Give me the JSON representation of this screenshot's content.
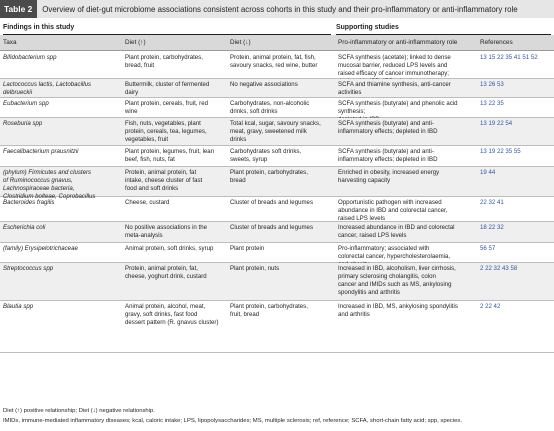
{
  "table": {
    "label": "Table 2",
    "caption": "Overview of diet-gut microbiome associations consistent across cohorts in this study and their pro-inflammatory or anti-inflammatory role"
  },
  "groups": {
    "findings": "Findings in this study",
    "supporting": "Supporting studies"
  },
  "columns": {
    "taxa": "Taxa",
    "diet_up": "Diet (↑)",
    "diet_down": "Diet (↓)",
    "role": "Pro-inflammatory or anti-inflammatory role",
    "refs": "References"
  },
  "rows": [
    {
      "taxa": "Bifidobacterium spp",
      "diet_up": "Plant protein, carbohydrates,\nbread, fruit",
      "diet_down": "Protein, animal protein, fat, fish,\nsavoury snacks, red wine, butter",
      "role": "SCFA synthesis (acetate); linked to dense\nmucosal barrier, reduced LPS levels and\nraised efficacy of cancer immunotherapy;\ndepleted in IBD, IBS, obesity",
      "refs": "13 15 22 35 41 51 52"
    },
    {
      "taxa": "Lactococcus lactis, Lactobacillus\ndelbrueckii",
      "diet_up": "Buttermilk, cluster of fermented\ndairy",
      "diet_down": "No negative associations",
      "role": "SCFA and thiamine synthesis, anti-cancer\nactivities",
      "refs": "13 26 53"
    },
    {
      "taxa": "Eubacterium spp",
      "diet_up": "Plant protein, cereals, fruit, red\nwine",
      "diet_down": "Carbohydrates, non-alcoholic\ndrinks, soft drinks",
      "role": "SCFA synthesis (butyrate) and phenolic acid synthesis;\ndepleted in IBD",
      "refs": "13 22 35"
    },
    {
      "taxa": "Roseburia spp",
      "diet_up": "Fish, nuts, vegetables, plant\nprotein, cereals, tea, legumes,\nvegetables, fruit",
      "diet_down": "Total kcal, sugar, savoury snacks,\nmeat, gravy, sweetened milk\ndrinks",
      "role": "SCFA synthesis (butyrate) and anti-\ninflammatory effects; depleted in IBD",
      "refs": "13 19 22 54"
    },
    {
      "taxa": "Faecalibacterium prausnitzii",
      "diet_up": "Plant protein, legumes, fruit, lean\nbeef, fish, nuts, fat",
      "diet_down": "Carbohydrates soft drinks,\nsweets, syrup",
      "role": "SCFA synthesis (butyrate) and anti-\ninflammatory effects; depleted in IBD",
      "refs": "13 19 22 35 55"
    },
    {
      "taxa": "(phylum) Firmicutes and clusters\nof Ruminococcus gnavus,\nLachnospiraceae bacteria,\nClostridium bolteae, Coprobacillus",
      "diet_up": "Protein, animal protein, fat\nintake, cheese cluster of fast\nfood and soft drinks",
      "diet_down": "Plant protein, carbohydrates,\nbread",
      "role": "Enriched in obesity, increased energy\nharvesting capacity",
      "refs": "19 44"
    },
    {
      "taxa": "Bacteroides fragilis",
      "diet_up": "Cheese, custard",
      "diet_down": "Cluster of breads and legumes",
      "role": "Opportunistic pathogen with increased\nabundance in IBD and colorectal cancer,\nraised LPS levels",
      "refs": "22 32 41"
    },
    {
      "taxa": "Escherichia coli",
      "diet_up": "No positive associations in the\nmeta-analysis",
      "diet_down": "Cluster of breads and legumes",
      "role": "Increased abundance in IBD and colorectal\ncancer, raised LPS levels",
      "refs": "18 22 32"
    },
    {
      "taxa": "(family) Erysipelotrichaceae",
      "diet_up": "Animal protein, soft drinks, syrup",
      "diet_down": "Plant protein",
      "role": "Pro-inflammatory; associated with\ncolorectal cancer, hypercholesterolaemia,\nand obesity.",
      "refs": "56 57"
    },
    {
      "taxa": "Streptococcus spp",
      "diet_up": "Protein, animal protein, fat,\ncheese, yoghurt drink, custard",
      "diet_down": "Plant protein, nuts",
      "role": "Increased in IBD, alcoholism, liver cirrhosis,\nprimary sclerosing cholangitis, colon\ncancer and IMIDs such as MS, ankylosing\nspondylitis and arthritis",
      "refs": "2 22 32 43 58"
    },
    {
      "taxa": "Blautia spp",
      "diet_up": "Animal protein, alcohol, meat,\ngravy, soft drinks, fast food\ndessert pattern (R. gnavus cluster)",
      "diet_down": "Plant protein, carbohydrates,\nfruit, bread",
      "role": "Increased in IBD, MS, ankylosing spondylitis\nand arthritis",
      "refs": "2 22 42"
    }
  ],
  "footnotes": [
    "Diet (↑) positive relationship; Diet (↓) negative relationship.",
    "IMIDs, immune-mediated inflammatory diseases; kcal, caloric intake; LPS, lipopolysaccharides; MS, multiple sclerosis; ref, reference; SCFA, short-chain fatty acid; spp, species."
  ]
}
